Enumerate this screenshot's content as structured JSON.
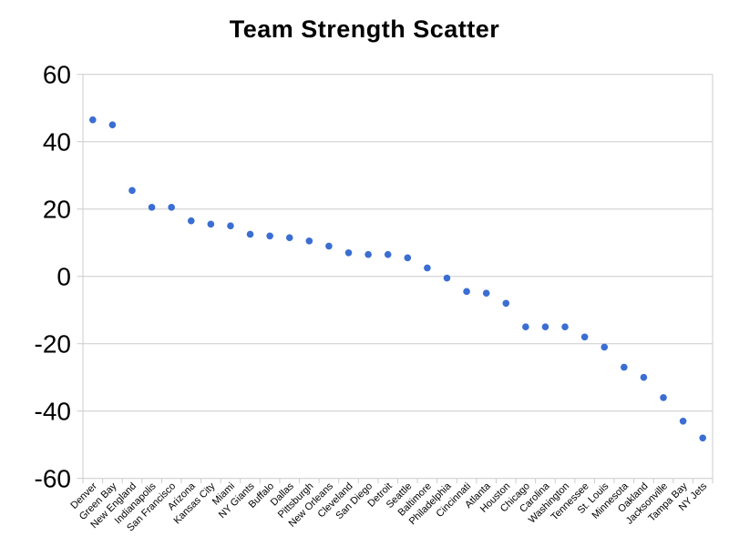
{
  "chart_data": {
    "type": "scatter",
    "title": "Team Strength Scatter",
    "xlabel": "",
    "ylabel": "",
    "ylim": [
      -60,
      60
    ],
    "yticks": [
      60,
      40,
      20,
      0,
      -20,
      -40,
      -60
    ],
    "grid": true,
    "legend": "none",
    "categories": [
      "Denver",
      "Green Bay",
      "New England",
      "Indianapolis",
      "San Francisco",
      "Arizona",
      "Kansas City",
      "Miami",
      "NY Giants",
      "Buffalo",
      "Dallas",
      "Pittsburgh",
      "New Orleans",
      "Cleveland",
      "San Diego",
      "Detroit",
      "Seattle",
      "Baltimore",
      "Philadelphia",
      "Cincinnati",
      "Atlanta",
      "Houston",
      "Chicago",
      "Carolina",
      "Washington",
      "Tennessee",
      "St. Louis",
      "Minnesota",
      "Oakland",
      "Jacksonville",
      "Tampa Bay",
      "NY Jets"
    ],
    "values": [
      46.5,
      45,
      25.5,
      20.5,
      20.5,
      16.5,
      15.5,
      15,
      12.5,
      12,
      11.5,
      10.5,
      9,
      7,
      6.5,
      6.5,
      5.5,
      2.5,
      -0.5,
      -4.5,
      -5,
      -8,
      -15,
      -15,
      -15,
      -18,
      -21,
      -27,
      -30,
      -36,
      -43,
      -48
    ],
    "colors": {
      "point": "#3B6ED2",
      "grid": "#CCCCCC",
      "text": "#000000",
      "background": "#FFFFFF"
    }
  }
}
